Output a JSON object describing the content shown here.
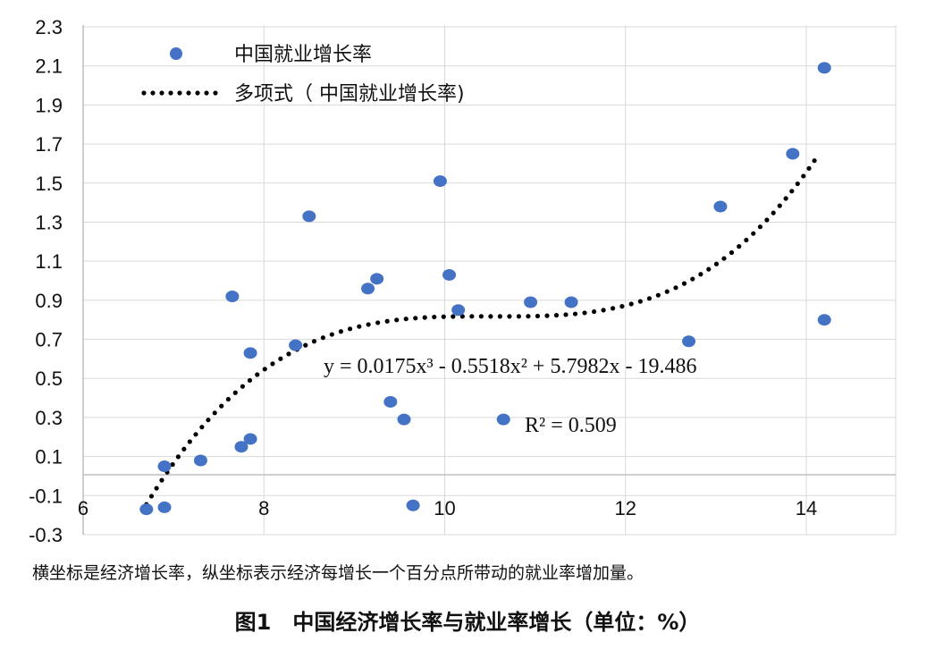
{
  "chart_data": {
    "type": "scatter",
    "x_ticks": [
      "6",
      "8",
      "10",
      "12",
      "14"
    ],
    "y_ticks": [
      "2.3",
      "2.1",
      "1.9",
      "1.7",
      "1.5",
      "1.3",
      "1.1",
      "0.9",
      "0.7",
      "0.5",
      "0.3",
      "0.1",
      "-0.1",
      "-0.3"
    ],
    "xlim": [
      6,
      15
    ],
    "ylim": [
      -0.3,
      2.3
    ],
    "grid": true,
    "legend": {
      "placement": "top-left",
      "entries": [
        "中国就业增长率",
        "多项式（ 中国就业增长率)"
      ]
    },
    "series": [
      {
        "name": "中国就业增长率",
        "color": "#4472C4",
        "points": [
          [
            6.7,
            -0.17
          ],
          [
            6.9,
            -0.16
          ],
          [
            6.9,
            0.05
          ],
          [
            7.3,
            0.08
          ],
          [
            7.65,
            0.92
          ],
          [
            7.75,
            0.15
          ],
          [
            7.85,
            0.19
          ],
          [
            7.85,
            0.63
          ],
          [
            8.35,
            0.67
          ],
          [
            8.5,
            1.33
          ],
          [
            9.15,
            0.96
          ],
          [
            9.25,
            1.01
          ],
          [
            9.4,
            0.38
          ],
          [
            9.55,
            0.29
          ],
          [
            9.65,
            -0.15
          ],
          [
            9.95,
            1.51
          ],
          [
            10.05,
            1.03
          ],
          [
            10.15,
            0.85
          ],
          [
            10.65,
            0.29
          ],
          [
            10.95,
            0.89
          ],
          [
            11.4,
            0.89
          ],
          [
            12.7,
            0.69
          ],
          [
            13.05,
            1.38
          ],
          [
            13.85,
            1.65
          ],
          [
            14.2,
            2.09
          ],
          [
            14.2,
            0.8
          ]
        ]
      }
    ],
    "trendline": {
      "name": "多项式（ 中国就业增长率)",
      "coefficients": [
        0.0175,
        -0.5518,
        5.7982,
        -19.486
      ],
      "x_range": [
        6.7,
        14.15
      ],
      "color": "#000000"
    },
    "annotations": {
      "equation": "y = 0.0175x³ - 0.5518x² + 5.7982x - 19.486",
      "r_squared": "R² = 0.509"
    }
  },
  "note": "横坐标是经济增长率，纵坐标表示经济每增长一个百分点所带动的就业率增加量。",
  "caption": "图1　中国经济增长率与就业率增长（单位：%）"
}
